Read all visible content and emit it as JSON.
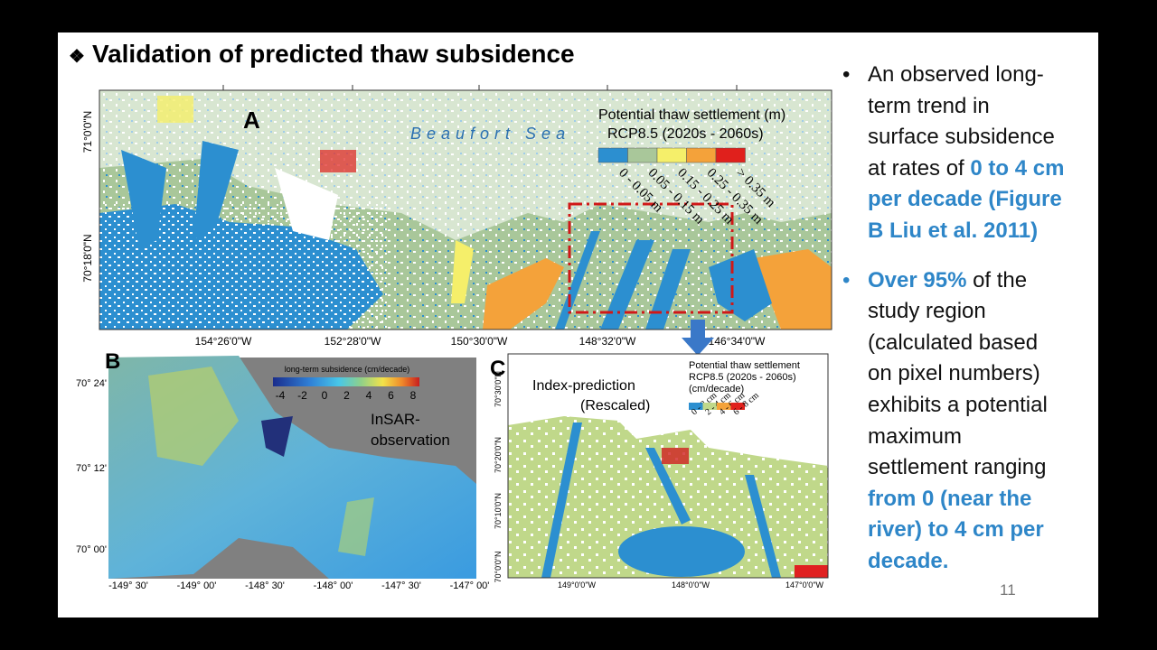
{
  "title": "Validation of predicted thaw subsidence",
  "panel_a": {
    "label": "A",
    "sea": "Beaufort Sea",
    "legend_title": "Potential thaw settlement (m)",
    "legend_subtitle": "RCP8.5 (2020s - 2060s)",
    "legend_items": [
      "0 - 0.05 m",
      "0.05 - 0.15 m",
      "0.15 - 0.25 m",
      "0.25 - 0.35 m",
      "> 0.35 m"
    ],
    "lat_labels": [
      "71°0'0\"N",
      "70°18'0\"N"
    ],
    "lon_labels": [
      "154°26'0\"W",
      "152°28'0\"W",
      "150°30'0\"W",
      "148°32'0\"W",
      "146°34'0\"W"
    ]
  },
  "panel_b": {
    "label": "B",
    "legend_title": "long-term subsidence (cm/decade)",
    "legend_ticks": [
      "-4",
      "-2",
      "0",
      "2",
      "4",
      "6",
      "8"
    ],
    "annotation": [
      "InSAR-",
      "observation"
    ],
    "lat_labels": [
      "70° 24'",
      "70° 12'",
      "70° 00'"
    ],
    "lon_labels": [
      "-149° 30'",
      "-149° 00'",
      "-148° 30'",
      "-148° 00'",
      "-147° 30'",
      "-147° 00'"
    ]
  },
  "panel_c": {
    "label": "C",
    "annotation": [
      "Index-prediction",
      "(Rescaled)"
    ],
    "legend_title": [
      "Potential thaw settlement",
      "RCP8.5 (2020s - 2060s)",
      "(cm/decade)"
    ],
    "legend_items": [
      "0 - 2 cm",
      "2 - 4 cm",
      "4 - 6 cm",
      "6 - 8 cm"
    ],
    "lat_labels": [
      "70°30'0\"N",
      "70°20'0\"N",
      "70°10'0\"N",
      "70°0'0\"N"
    ],
    "lon_labels": [
      "149°0'0\"W",
      "148°0'0\"W",
      "147°0'0\"W"
    ]
  },
  "bullets": [
    [
      "An observed long-term trend in surface subsidence at rates of ",
      "0 to 4 cm per decade (Figure B Liu et al. 2011)"
    ],
    [
      "Over 95%",
      " of the study region (calculated based on pixel numbers) exhibits a potential maximum settlement ranging ",
      "from 0 (near the river) to 4 cm per decade."
    ]
  ],
  "page_number": "11"
}
